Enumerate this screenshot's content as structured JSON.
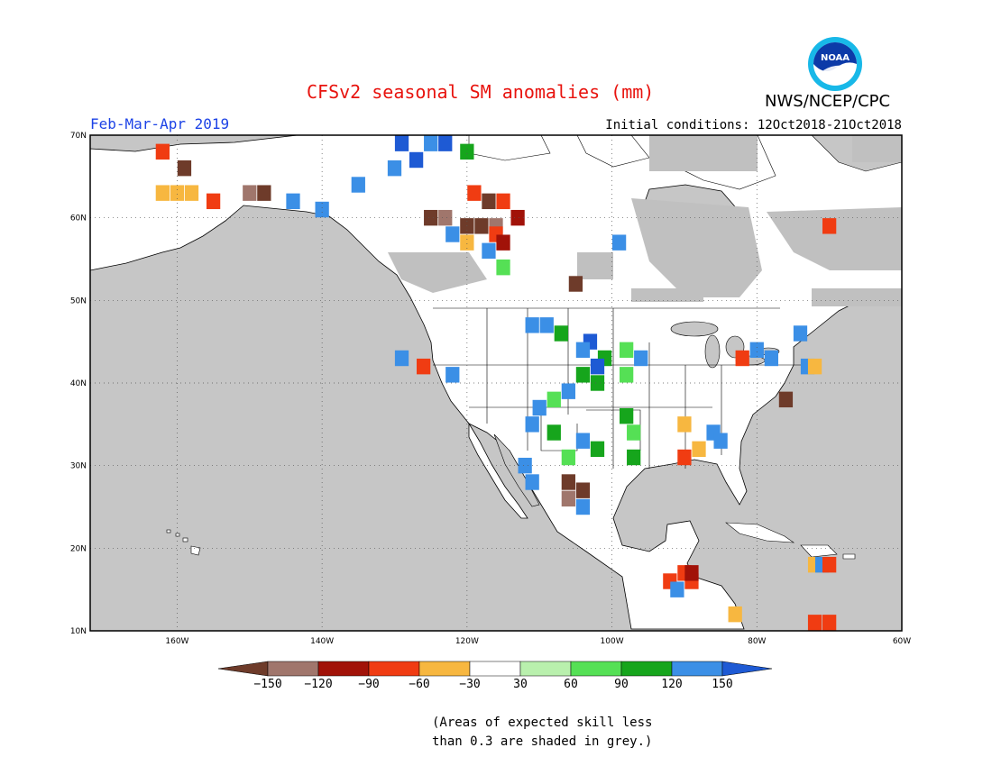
{
  "title": "CFSv2 seasonal SM anomalies (mm)",
  "period": "Feb-Mar-Apr 2019",
  "initial_conditions": "Initial conditions: 12Oct2018-21Oct2018",
  "organization": "NWS/NCEP/CPC",
  "logo_text": "NOAA",
  "footnote_line1": "(Areas of expected skill less",
  "footnote_line2": "than 0.3 are shaded in grey.)",
  "map": {
    "lon_range": [
      -172,
      -60
    ],
    "lat_range": [
      10,
      70
    ],
    "lat_labels": [
      "70N",
      "60N",
      "50N",
      "40N",
      "30N",
      "20N",
      "10N"
    ],
    "lon_labels": [
      "160W",
      "140W",
      "120W",
      "100W",
      "80W",
      "60W"
    ],
    "ocean_color": "#c6c6c6",
    "land_color": "#ffffff",
    "low_skill_color": "#c0c0c0"
  },
  "colorbar": {
    "labels": [
      "−150",
      "−120",
      "−90",
      "−60",
      "−30",
      "30",
      "60",
      "90",
      "120",
      "150"
    ],
    "colors": [
      "#6e3b2a",
      "#a0766c",
      "#a11208",
      "#f03c12",
      "#f7b740",
      "#ffffff",
      "#b9f0ad",
      "#55e055",
      "#16a51c",
      "#3b8fe6",
      "#1e5ad4"
    ]
  },
  "anomaly_cells": [
    {
      "lat": 68,
      "lon": -162,
      "color": "#f03c12"
    },
    {
      "lat": 66,
      "lon": -159,
      "color": "#6e3b2a"
    },
    {
      "lat": 63,
      "lon": -162,
      "color": "#f7b740"
    },
    {
      "lat": 63,
      "lon": -160,
      "color": "#f7b740"
    },
    {
      "lat": 63,
      "lon": -158,
      "color": "#f7b740"
    },
    {
      "lat": 62,
      "lon": -155,
      "color": "#f03c12"
    },
    {
      "lat": 63,
      "lon": -150,
      "color": "#a0766c"
    },
    {
      "lat": 63,
      "lon": -148,
      "color": "#6e3b2a"
    },
    {
      "lat": 62,
      "lon": -144,
      "color": "#3b8fe6"
    },
    {
      "lat": 61,
      "lon": -140,
      "color": "#3b8fe6"
    },
    {
      "lat": 69,
      "lon": -129,
      "color": "#1e5ad4"
    },
    {
      "lat": 69,
      "lon": -125,
      "color": "#3b8fe6"
    },
    {
      "lat": 69,
      "lon": -123,
      "color": "#1e5ad4"
    },
    {
      "lat": 68,
      "lon": -120,
      "color": "#16a51c"
    },
    {
      "lat": 67,
      "lon": -127,
      "color": "#1e5ad4"
    },
    {
      "lat": 66,
      "lon": -130,
      "color": "#3b8fe6"
    },
    {
      "lat": 64,
      "lon": -135,
      "color": "#3b8fe6"
    },
    {
      "lat": 63,
      "lon": -119,
      "color": "#f03c12"
    },
    {
      "lat": 62,
      "lon": -117,
      "color": "#6e3b2a"
    },
    {
      "lat": 62,
      "lon": -115,
      "color": "#f03c12"
    },
    {
      "lat": 60,
      "lon": -125,
      "color": "#6e3b2a"
    },
    {
      "lat": 60,
      "lon": -123,
      "color": "#a0766c"
    },
    {
      "lat": 59,
      "lon": -120,
      "color": "#6e3b2a"
    },
    {
      "lat": 59,
      "lon": -118,
      "color": "#6e3b2a"
    },
    {
      "lat": 59,
      "lon": -116,
      "color": "#a0766c"
    },
    {
      "lat": 58,
      "lon": -116,
      "color": "#f03c12"
    },
    {
      "lat": 57,
      "lon": -115,
      "color": "#a11208"
    },
    {
      "lat": 60,
      "lon": -113,
      "color": "#a11208"
    },
    {
      "lat": 58,
      "lon": -122,
      "color": "#3b8fe6"
    },
    {
      "lat": 57,
      "lon": -120,
      "color": "#f7b740"
    },
    {
      "lat": 56,
      "lon": -117,
      "color": "#3b8fe6"
    },
    {
      "lat": 54,
      "lon": -115,
      "color": "#55e055"
    },
    {
      "lat": 52,
      "lon": -105,
      "color": "#6e3b2a"
    },
    {
      "lat": 57,
      "lon": -99,
      "color": "#3b8fe6"
    },
    {
      "lat": 47,
      "lon": -111,
      "color": "#3b8fe6"
    },
    {
      "lat": 47,
      "lon": -109,
      "color": "#3b8fe6"
    },
    {
      "lat": 46,
      "lon": -107,
      "color": "#16a51c"
    },
    {
      "lat": 45,
      "lon": -103,
      "color": "#1e5ad4"
    },
    {
      "lat": 44,
      "lon": -104,
      "color": "#3b8fe6"
    },
    {
      "lat": 43,
      "lon": -101,
      "color": "#16a51c"
    },
    {
      "lat": 42,
      "lon": -102,
      "color": "#1e5ad4"
    },
    {
      "lat": 41,
      "lon": -104,
      "color": "#16a51c"
    },
    {
      "lat": 40,
      "lon": -102,
      "color": "#16a51c"
    },
    {
      "lat": 39,
      "lon": -106,
      "color": "#3b8fe6"
    },
    {
      "lat": 38,
      "lon": -108,
      "color": "#55e055"
    },
    {
      "lat": 37,
      "lon": -110,
      "color": "#3b8fe6"
    },
    {
      "lat": 35,
      "lon": -111,
      "color": "#3b8fe6"
    },
    {
      "lat": 34,
      "lon": -108,
      "color": "#16a51c"
    },
    {
      "lat": 33,
      "lon": -104,
      "color": "#3b8fe6"
    },
    {
      "lat": 32,
      "lon": -102,
      "color": "#16a51c"
    },
    {
      "lat": 31,
      "lon": -106,
      "color": "#55e055"
    },
    {
      "lat": 28,
      "lon": -106,
      "color": "#6e3b2a"
    },
    {
      "lat": 27,
      "lon": -104,
      "color": "#6e3b2a"
    },
    {
      "lat": 26,
      "lon": -106,
      "color": "#a0766c"
    },
    {
      "lat": 25,
      "lon": -104,
      "color": "#3b8fe6"
    },
    {
      "lat": 30,
      "lon": -112,
      "color": "#3b8fe6"
    },
    {
      "lat": 28,
      "lon": -111,
      "color": "#3b8fe6"
    },
    {
      "lat": 36,
      "lon": -98,
      "color": "#16a51c"
    },
    {
      "lat": 34,
      "lon": -97,
      "color": "#55e055"
    },
    {
      "lat": 31,
      "lon": -97,
      "color": "#16a51c"
    },
    {
      "lat": 43,
      "lon": -96,
      "color": "#3b8fe6"
    },
    {
      "lat": 44,
      "lon": -98,
      "color": "#55e055"
    },
    {
      "lat": 41,
      "lon": -98,
      "color": "#55e055"
    },
    {
      "lat": 42,
      "lon": -126,
      "color": "#f03c12"
    },
    {
      "lat": 43,
      "lon": -129,
      "color": "#3b8fe6"
    },
    {
      "lat": 41,
      "lon": -122,
      "color": "#3b8fe6"
    },
    {
      "lat": 34,
      "lon": -86,
      "color": "#3b8fe6"
    },
    {
      "lat": 33,
      "lon": -85,
      "color": "#3b8fe6"
    },
    {
      "lat": 31,
      "lon": -90,
      "color": "#f03c12"
    },
    {
      "lat": 32,
      "lon": -88,
      "color": "#f7b740"
    },
    {
      "lat": 35,
      "lon": -90,
      "color": "#f7b740"
    },
    {
      "lat": 43,
      "lon": -82,
      "color": "#f03c12"
    },
    {
      "lat": 43,
      "lon": -78,
      "color": "#3b8fe6"
    },
    {
      "lat": 38,
      "lon": -76,
      "color": "#6e3b2a"
    },
    {
      "lat": 42,
      "lon": -73,
      "color": "#3b8fe6"
    },
    {
      "lat": 42,
      "lon": -72,
      "color": "#f7b740"
    },
    {
      "lat": 17,
      "lon": -90,
      "color": "#f03c12"
    },
    {
      "lat": 16,
      "lon": -92,
      "color": "#f03c12"
    },
    {
      "lat": 16,
      "lon": -89,
      "color": "#f03c12"
    },
    {
      "lat": 17,
      "lon": -89,
      "color": "#a11208"
    },
    {
      "lat": 15,
      "lon": -91,
      "color": "#3b8fe6"
    },
    {
      "lat": 12,
      "lon": -83,
      "color": "#f7b740"
    },
    {
      "lat": 11,
      "lon": -72,
      "color": "#f03c12"
    },
    {
      "lat": 11,
      "lon": -70,
      "color": "#f03c12"
    },
    {
      "lat": 18,
      "lon": -72,
      "color": "#f7b740"
    },
    {
      "lat": 18,
      "lon": -71,
      "color": "#3b8fe6"
    },
    {
      "lat": 18,
      "lon": -70,
      "color": "#f03c12"
    },
    {
      "lat": 59,
      "lon": -70,
      "color": "#f03c12"
    },
    {
      "lat": 44,
      "lon": -80,
      "color": "#3b8fe6"
    },
    {
      "lat": 46,
      "lon": -74,
      "color": "#3b8fe6"
    }
  ]
}
